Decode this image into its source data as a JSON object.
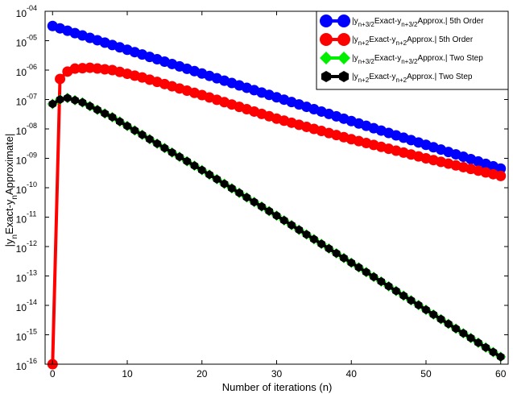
{
  "chart_data": {
    "type": "line",
    "xlabel": "Number of iterations (n)",
    "ylabel_parts": [
      "|y",
      "n",
      "Exact-y",
      "n",
      "Approximate|"
    ],
    "xlim": [
      -1,
      61
    ],
    "ylim_log10": [
      -16,
      -4
    ],
    "yscale": "log",
    "grid": false,
    "legend_position": "top-right",
    "x_ticks": [
      0,
      10,
      20,
      30,
      40,
      50,
      60
    ],
    "x_tick_labels": [
      "0",
      "10",
      "20",
      "30",
      "40",
      "50",
      "60"
    ],
    "y_tick_exponents": [
      -4,
      -5,
      -6,
      -7,
      -8,
      -9,
      -10,
      -11,
      -12,
      -13,
      -14,
      -15,
      -16
    ],
    "y_tick_labels": [
      "10",
      "10",
      "10",
      "10",
      "10",
      "10",
      "10",
      "10",
      "10",
      "10",
      "10",
      "10",
      "10"
    ],
    "y_tick_superscripts": [
      "-04",
      "-05",
      "-06",
      "-07",
      "-08",
      "-09",
      "-10",
      "-11",
      "-12",
      "-13",
      "-14",
      "-15",
      "-16"
    ],
    "series": [
      {
        "legend_parts": [
          "|y",
          "n+3/2",
          "Exact-y",
          "n+3/2",
          "Approx.| 5th Order"
        ],
        "color": "#0000ff",
        "marker": "circle",
        "points": [
          [
            0,
            -4.5
          ],
          [
            60,
            -9.35
          ]
        ]
      },
      {
        "legend_parts": [
          "|y",
          "n+2",
          "Exact-y",
          "n+2",
          "Approx.| 5th Order"
        ],
        "color": "#ff0000",
        "marker": "circle",
        "points": [
          [
            0,
            -16.0
          ],
          [
            1,
            -6.3
          ],
          [
            2,
            -6.05
          ],
          [
            3,
            -5.95
          ],
          [
            5,
            -5.92
          ],
          [
            8,
            -6.0
          ],
          [
            12,
            -6.25
          ],
          [
            20,
            -6.85
          ],
          [
            30,
            -7.65
          ],
          [
            40,
            -8.35
          ],
          [
            50,
            -9.0
          ],
          [
            60,
            -9.6
          ]
        ]
      },
      {
        "legend_parts": [
          "|y",
          "n+3/2",
          "Exact-y",
          "n+3/2",
          "Approx.| Two Step"
        ],
        "color": "#00ee00",
        "marker": "diamond",
        "points": [
          [
            0,
            -7.15
          ],
          [
            1,
            -7.0
          ],
          [
            2,
            -6.95
          ],
          [
            4,
            -7.1
          ],
          [
            8,
            -7.6
          ],
          [
            12,
            -8.2
          ],
          [
            20,
            -9.4
          ],
          [
            30,
            -10.95
          ],
          [
            40,
            -12.55
          ],
          [
            50,
            -14.15
          ],
          [
            60,
            -15.75
          ]
        ]
      },
      {
        "legend_parts": [
          "|y",
          "n+2",
          "Exact-y",
          "n+2",
          "Approx.| Two Step"
        ],
        "color": "#000000",
        "marker": "hexagon",
        "points": [
          [
            0,
            -7.15
          ],
          [
            1,
            -7.0
          ],
          [
            2,
            -6.95
          ],
          [
            4,
            -7.1
          ],
          [
            8,
            -7.6
          ],
          [
            12,
            -8.2
          ],
          [
            20,
            -9.4
          ],
          [
            30,
            -10.95
          ],
          [
            40,
            -12.55
          ],
          [
            50,
            -14.15
          ],
          [
            60,
            -15.75
          ]
        ]
      }
    ]
  }
}
